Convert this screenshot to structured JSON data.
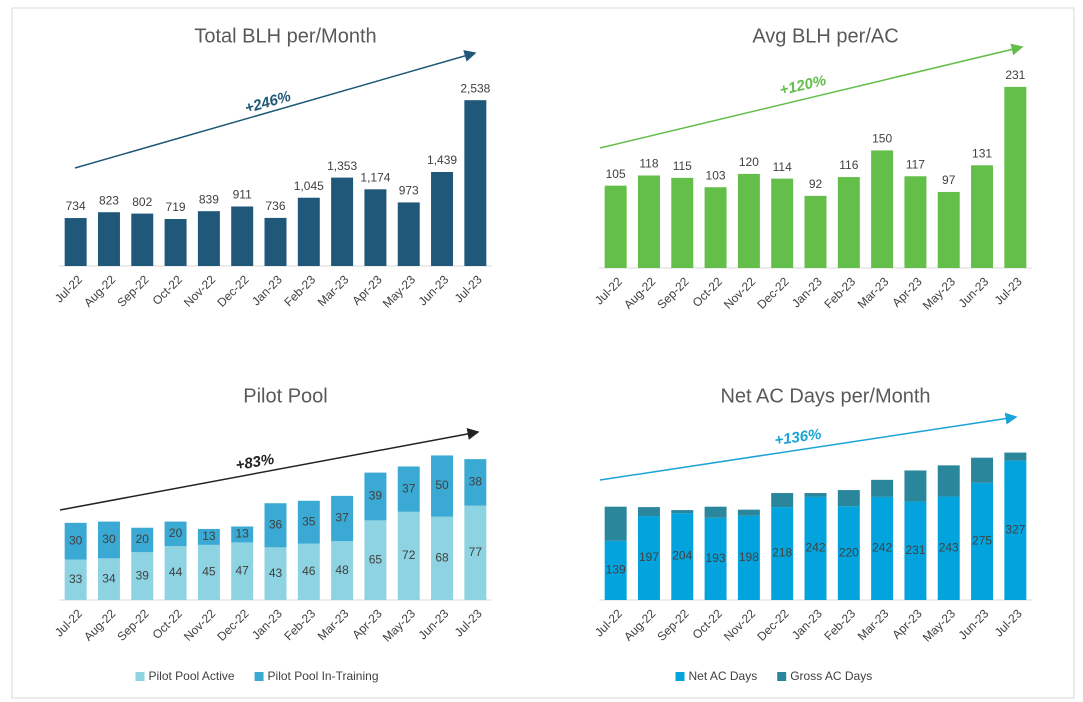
{
  "chart_data": [
    {
      "type": "bar",
      "title": "Total BLH per/Month",
      "annotation": "+246%",
      "categories": [
        "Jul-22",
        "Aug-22",
        "Sep-22",
        "Oct-22",
        "Nov-22",
        "Dec-22",
        "Jan-23",
        "Feb-23",
        "Mar-23",
        "Apr-23",
        "May-23",
        "Jun-23",
        "Jul-23"
      ],
      "values": [
        734,
        823,
        802,
        719,
        839,
        911,
        736,
        1045,
        1353,
        1174,
        973,
        1439,
        2538
      ],
      "value_labels": [
        "734",
        "823",
        "802",
        "719",
        "839",
        "911",
        "736",
        "1,045",
        "1,353",
        "1,174",
        "973",
        "1,439",
        "2,538"
      ],
      "color": "#1f5878",
      "ylim": [
        0,
        3000
      ]
    },
    {
      "type": "bar",
      "title": "Avg BLH per/AC",
      "annotation": "+120%",
      "categories": [
        "Jul-22",
        "Aug-22",
        "Sep-22",
        "Oct-22",
        "Nov-22",
        "Dec-22",
        "Jan-23",
        "Feb-23",
        "Mar-23",
        "Apr-23",
        "May-23",
        "Jun-23",
        "Jul-23"
      ],
      "values": [
        105,
        118,
        115,
        103,
        120,
        114,
        92,
        116,
        150,
        117,
        97,
        131,
        231
      ],
      "color": "#63be4a",
      "ylim": [
        0,
        250
      ]
    },
    {
      "type": "stacked_bar",
      "title": "Pilot Pool",
      "annotation": "+83%",
      "categories": [
        "Jul-22",
        "Aug-22",
        "Sep-22",
        "Oct-22",
        "Nov-22",
        "Dec-22",
        "Jan-23",
        "Feb-23",
        "Mar-23",
        "Apr-23",
        "May-23",
        "Jun-23",
        "Jul-23"
      ],
      "series": [
        {
          "name": "Pilot Pool Active",
          "color": "#8dd3e2",
          "values": [
            33,
            34,
            39,
            44,
            45,
            47,
            43,
            46,
            48,
            65,
            72,
            68,
            77
          ],
          "labels": true
        },
        {
          "name": "Pilot Pool In-Training",
          "color": "#3aa9d3",
          "values": [
            30,
            30,
            20,
            20,
            13,
            13,
            36,
            35,
            37,
            39,
            37,
            50,
            38
          ],
          "labels": true
        }
      ],
      "ylim": [
        0,
        160
      ],
      "legend": "bottom"
    },
    {
      "type": "stacked_bar",
      "title": "Net AC Days per/Month",
      "annotation": "+136%",
      "categories": [
        "Jul-22",
        "Aug-22",
        "Sep-22",
        "Oct-22",
        "Nov-22",
        "Dec-22",
        "Jan-23",
        "Feb-23",
        "Mar-23",
        "Apr-23",
        "May-23",
        "Jun-23",
        "Jul-23"
      ],
      "series": [
        {
          "name": "Net AC Days",
          "color": "#03a4dd",
          "values": [
            139,
            197,
            204,
            193,
            198,
            218,
            242,
            220,
            242,
            231,
            243,
            275,
            327
          ],
          "labels": true
        },
        {
          "name": "Gross AC Days",
          "color": "#2a879b",
          "values": [
            80,
            21,
            7,
            26,
            14,
            33,
            9,
            38,
            40,
            73,
            73,
            59,
            19
          ],
          "labels": false
        }
      ],
      "ylim": [
        0,
        460
      ],
      "legend": "bottom"
    }
  ]
}
